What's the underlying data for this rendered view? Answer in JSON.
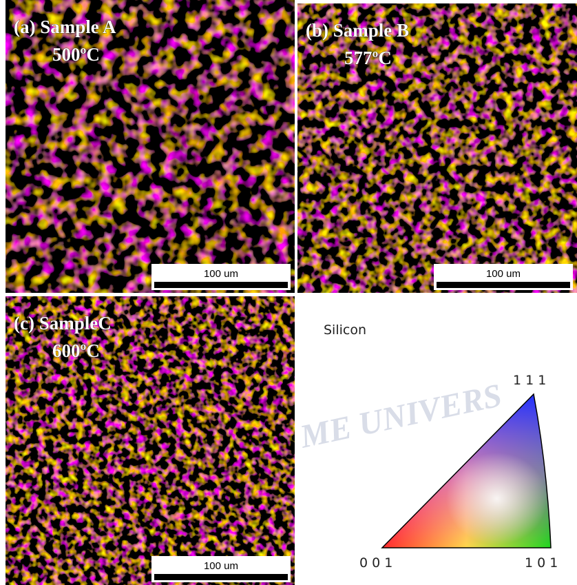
{
  "panels": [
    {
      "label": "(a) Sample A",
      "temperature": "500ºC",
      "scale_bar": "100 um"
    },
    {
      "label": "(b) Sample B",
      "temperature": "577ºC",
      "scale_bar": "100 um"
    },
    {
      "label": "(c) SampleC",
      "temperature": "600ºC",
      "scale_bar": "100 um"
    }
  ],
  "legend": {
    "title": "Silicon",
    "top_vertex": "1 1 1",
    "left_vertex": "0 0 1",
    "right_vertex": "1 0 1"
  },
  "watermark": "ME UNIVERS"
}
